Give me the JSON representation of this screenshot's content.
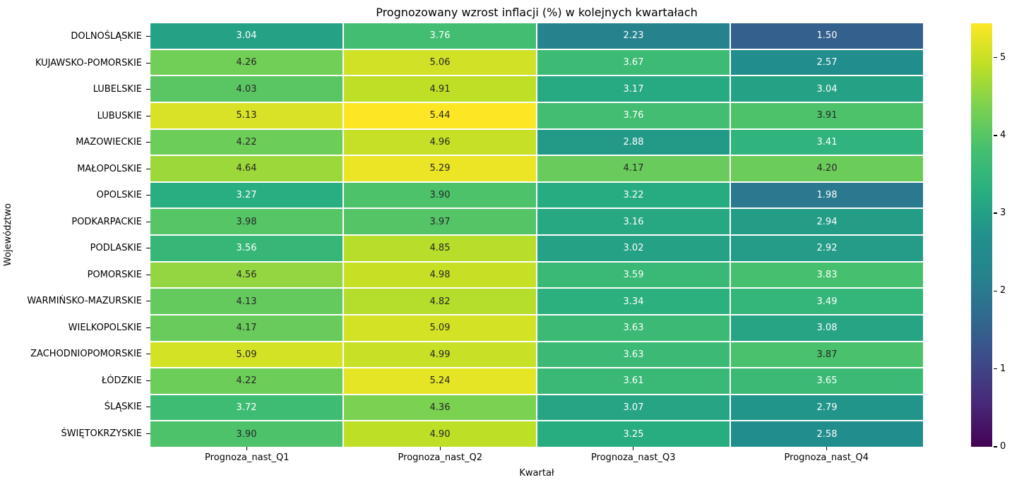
{
  "chart_data": {
    "type": "heatmap",
    "title": "Prognozowany wzrost inflacji (%) w kolejnych kwartałach",
    "xlabel": "Kwartał",
    "ylabel": "Województwo",
    "columns": [
      "Prognoza_nast_Q1",
      "Prognoza_nast_Q2",
      "Prognoza_nast_Q3",
      "Prognoza_nast_Q4"
    ],
    "rows": [
      "DOLNOŚLĄSKIE",
      "KUJAWSKO-POMORSKIE",
      "LUBELSKIE",
      "LUBUSKIE",
      "MAZOWIECKIE",
      "MAŁOPOLSKIE",
      "OPOLSKIE",
      "PODKARPACKIE",
      "PODLASKIE",
      "POMORSKIE",
      "WARMIŃSKO-MAZURSKIE",
      "WIELKOPOLSKIE",
      "ZACHODNIOPOMORSKIE",
      "ŁÓDZKIE",
      "ŚLĄSKIE",
      "ŚWIĘTOKRZYSKIE"
    ],
    "values": [
      [
        3.04,
        3.76,
        2.23,
        1.5
      ],
      [
        4.26,
        5.06,
        3.67,
        2.57
      ],
      [
        4.03,
        4.91,
        3.17,
        3.04
      ],
      [
        5.13,
        5.44,
        3.76,
        3.91
      ],
      [
        4.22,
        4.96,
        2.88,
        3.41
      ],
      [
        4.64,
        5.29,
        4.17,
        4.2
      ],
      [
        3.27,
        3.9,
        3.22,
        1.98
      ],
      [
        3.98,
        3.97,
        3.16,
        2.94
      ],
      [
        3.56,
        4.85,
        3.02,
        2.92
      ],
      [
        4.56,
        4.98,
        3.59,
        3.83
      ],
      [
        4.13,
        4.82,
        3.34,
        3.49
      ],
      [
        4.17,
        5.09,
        3.63,
        3.08
      ],
      [
        5.09,
        4.99,
        3.63,
        3.87
      ],
      [
        4.22,
        5.24,
        3.61,
        3.65
      ],
      [
        3.72,
        4.36,
        3.07,
        2.79
      ],
      [
        3.9,
        4.9,
        3.25,
        2.58
      ]
    ],
    "value_format_decimals": 2,
    "colormap": "viridis",
    "vmin": 0,
    "vmax": 5.44,
    "colorbar_ticks": [
      0,
      1,
      2,
      3,
      4,
      5
    ],
    "gridline_color": "#ffffff",
    "annotation_color_light": "#ffffff",
    "annotation_color_dark": "#262626",
    "legend_position": "right-colorbar",
    "grid": "cell-separators-only"
  }
}
